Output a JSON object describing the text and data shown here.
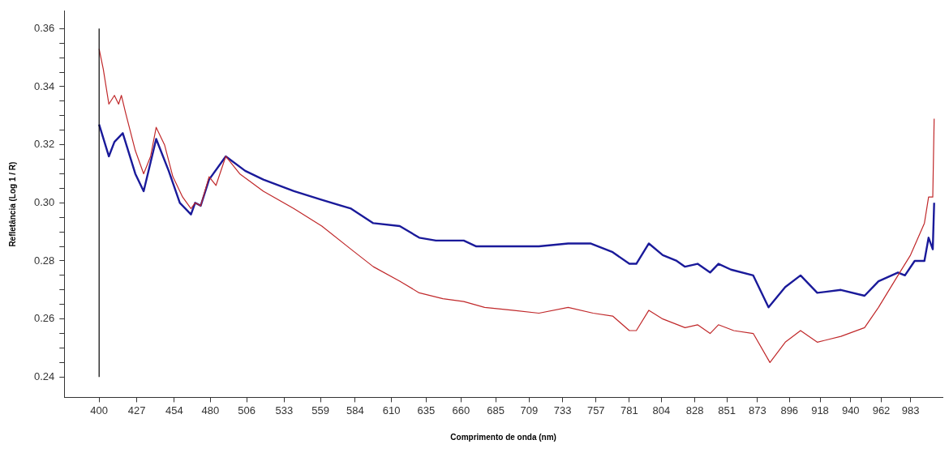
{
  "chart_data": {
    "type": "line",
    "xlabel": "Comprimento de onda (nm)",
    "ylabel": "Refletância (Log 1 / R)",
    "xlim": [
      375,
      1006
    ],
    "xticks": [
      400,
      427,
      454,
      480,
      506,
      533,
      559,
      584,
      610,
      635,
      660,
      685,
      709,
      733,
      757,
      781,
      804,
      828,
      851,
      873,
      896,
      918,
      940,
      962,
      983
    ],
    "ylim": [
      0.233,
      0.366
    ],
    "yticks": [
      {
        "value": 0.24,
        "label": "0.24"
      },
      {
        "value": 0.245,
        "label": null
      },
      {
        "value": 0.25,
        "label": null
      },
      {
        "value": 0.255,
        "label": null
      },
      {
        "value": 0.26,
        "label": "0.26"
      },
      {
        "value": 0.265,
        "label": null
      },
      {
        "value": 0.27,
        "label": null
      },
      {
        "value": 0.275,
        "label": null
      },
      {
        "value": 0.28,
        "label": "0.28"
      },
      {
        "value": 0.285,
        "label": null
      },
      {
        "value": 0.29,
        "label": null
      },
      {
        "value": 0.295,
        "label": null
      },
      {
        "value": 0.3,
        "label": "0.30"
      },
      {
        "value": 0.305,
        "label": null
      },
      {
        "value": 0.31,
        "label": null
      },
      {
        "value": 0.315,
        "label": null
      },
      {
        "value": 0.32,
        "label": "0.32"
      },
      {
        "value": 0.325,
        "label": null
      },
      {
        "value": 0.33,
        "label": null
      },
      {
        "value": 0.335,
        "label": null
      },
      {
        "value": 0.34,
        "label": "0.34"
      },
      {
        "value": 0.345,
        "label": null
      },
      {
        "value": 0.35,
        "label": null
      },
      {
        "value": 0.355,
        "label": null
      },
      {
        "value": 0.36,
        "label": "0.36"
      }
    ],
    "grid": false,
    "legend": false,
    "marker": "none",
    "line_style": "solid",
    "ref_lines": [
      {
        "axis": "x",
        "value": 400,
        "color": "#000000"
      }
    ],
    "series": [
      {
        "color": "#c0282a",
        "x": [
          400,
          403,
          407,
          411,
          414,
          416,
          419,
          426,
          432,
          437,
          441,
          447,
          453,
          460,
          466,
          469,
          473,
          479,
          484,
          491,
          501,
          518,
          540,
          560,
          581,
          597,
          616,
          630,
          647,
          662,
          677,
          697,
          716,
          737,
          755,
          769,
          781,
          786,
          795,
          805,
          821,
          830,
          839,
          845,
          856,
          870,
          882,
          893,
          904,
          916,
          933,
          950,
          960,
          974,
          983,
          993,
          996,
          999,
          1000
        ],
        "values": [
          0.353,
          0.346,
          0.334,
          0.337,
          0.334,
          0.337,
          0.331,
          0.318,
          0.31,
          0.316,
          0.326,
          0.32,
          0.309,
          0.302,
          0.298,
          0.3,
          0.299,
          0.309,
          0.306,
          0.316,
          0.31,
          0.304,
          0.298,
          0.292,
          0.284,
          0.278,
          0.273,
          0.269,
          0.267,
          0.266,
          0.264,
          0.263,
          0.262,
          0.264,
          0.262,
          0.261,
          0.256,
          0.256,
          0.263,
          0.26,
          0.257,
          0.258,
          0.255,
          0.258,
          0.256,
          0.255,
          0.245,
          0.252,
          0.256,
          0.252,
          0.254,
          0.257,
          0.264,
          0.275,
          0.282,
          0.293,
          0.302,
          0.302,
          0.329
        ]
      },
      {
        "color": "#1a1a9a",
        "x": [
          400,
          407,
          411,
          417,
          426,
          432,
          441,
          450,
          458,
          466,
          469,
          473,
          479,
          491,
          505,
          518,
          540,
          560,
          581,
          597,
          616,
          630,
          642,
          662,
          671,
          697,
          716,
          737,
          753,
          769,
          781,
          786,
          795,
          805,
          815,
          821,
          830,
          839,
          845,
          854,
          870,
          881,
          893,
          904,
          916,
          933,
          950,
          960,
          974,
          979,
          986,
          993,
          996,
          999,
          1000
        ],
        "values": [
          0.327,
          0.316,
          0.321,
          0.324,
          0.31,
          0.304,
          0.322,
          0.311,
          0.3,
          0.296,
          0.3,
          0.299,
          0.308,
          0.316,
          0.311,
          0.308,
          0.304,
          0.301,
          0.298,
          0.293,
          0.292,
          0.288,
          0.287,
          0.287,
          0.285,
          0.285,
          0.285,
          0.286,
          0.286,
          0.283,
          0.279,
          0.279,
          0.286,
          0.282,
          0.28,
          0.278,
          0.279,
          0.276,
          0.279,
          0.277,
          0.275,
          0.264,
          0.271,
          0.275,
          0.269,
          0.27,
          0.268,
          0.273,
          0.276,
          0.275,
          0.28,
          0.28,
          0.288,
          0.284,
          0.3
        ]
      }
    ]
  }
}
